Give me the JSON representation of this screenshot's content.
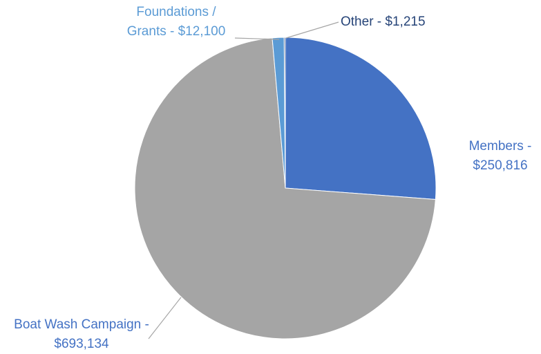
{
  "chart_data": {
    "type": "pie",
    "categories": [
      "Members -",
      "Boat Wash Campaign -",
      "Foundations / Grants -",
      "Other -"
    ],
    "values": [
      250816,
      693134,
      12100,
      1215
    ],
    "value_labels": [
      "$250,816",
      "$693,134",
      "$12,100",
      "$1,215"
    ],
    "colors": [
      "#4472c4",
      "#a5a5a5",
      "#5b9bd5",
      "#264478"
    ],
    "label_colors": [
      "#4472c4",
      "#4472c4",
      "#5b9bd5",
      "#264478"
    ]
  }
}
